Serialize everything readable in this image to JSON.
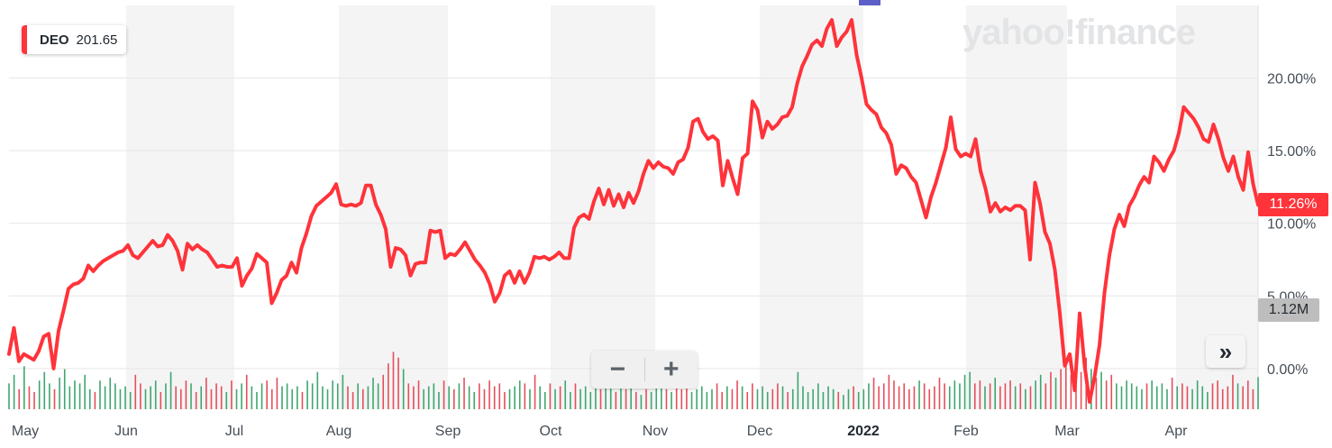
{
  "legend": {
    "symbol": "DEO",
    "value": "201.65",
    "color": "#ff333a"
  },
  "watermark": "yahoo!finance",
  "price_label": "11.26%",
  "volume_label": "1.12M",
  "controls": {
    "zoom_out": "−",
    "zoom_in": "+",
    "expand": "»"
  },
  "colors": {
    "line": "#ff333a",
    "vol_up": "#3fa66f",
    "vol_down": "#e54f5a",
    "band": "#f4f4f5",
    "grid": "#e6e6e6"
  },
  "chart_data": {
    "type": "line",
    "title": "",
    "xlabel": "",
    "ylabel": "",
    "y_ticks": [
      "0.00%",
      "5.00%",
      "10.00%",
      "15.00%",
      "20.00%"
    ],
    "x_ticks": [
      "May",
      "Jun",
      "Jul",
      "Aug",
      "Sep",
      "Oct",
      "Nov",
      "Dec",
      "2022",
      "Feb",
      "Mar",
      "Apr"
    ],
    "ylim": [
      -2.8,
      25
    ],
    "grid": true,
    "legend_position": "top-left",
    "series": [
      {
        "name": "DEO",
        "values": [
          1.0,
          2.8,
          0.5,
          1.0,
          0.8,
          0.6,
          1.2,
          2.2,
          2.4,
          0.0,
          2.6,
          4.0,
          5.5,
          5.8,
          5.9,
          6.2,
          7.1,
          6.7,
          7.1,
          7.4,
          7.6,
          7.8,
          8.0,
          8.1,
          8.5,
          7.8,
          7.6,
          8.0,
          8.4,
          8.8,
          8.4,
          8.5,
          9.2,
          8.8,
          8.1,
          6.8,
          8.6,
          8.2,
          8.5,
          8.2,
          8.0,
          7.5,
          7.0,
          7.1,
          7.0,
          7.0,
          7.6,
          5.7,
          6.4,
          6.9,
          7.9,
          7.6,
          7.3,
          4.5,
          5.2,
          6.1,
          6.4,
          7.3,
          6.6,
          8.3,
          9.3,
          10.5,
          11.2,
          11.5,
          11.8,
          12.1,
          12.7,
          11.3,
          11.2,
          11.3,
          11.2,
          11.4,
          12.6,
          12.6,
          11.3,
          10.6,
          9.6,
          7.0,
          8.3,
          8.2,
          7.8,
          6.4,
          7.2,
          7.3,
          7.3,
          9.5,
          9.4,
          9.5,
          7.6,
          7.9,
          7.8,
          8.2,
          8.7,
          8.1,
          7.5,
          7.1,
          6.6,
          5.8,
          4.6,
          5.2,
          6.4,
          6.7,
          5.9,
          6.7,
          5.9,
          6.6,
          7.7,
          7.6,
          7.7,
          7.5,
          7.7,
          8.0,
          7.6,
          7.6,
          9.7,
          10.4,
          10.6,
          10.3,
          11.5,
          12.4,
          11.3,
          12.3,
          11.2,
          12.0,
          11.1,
          12.1,
          11.4,
          12.2,
          13.4,
          14.3,
          13.8,
          14.2,
          13.9,
          13.8,
          13.4,
          14.2,
          14.4,
          15.2,
          17.0,
          17.2,
          16.3,
          15.8,
          16.0,
          15.7,
          12.6,
          14.3,
          13.1,
          12.0,
          14.5,
          14.8,
          18.4,
          17.8,
          15.9,
          17.0,
          16.5,
          16.8,
          17.3,
          17.4,
          18.0,
          19.6,
          20.8,
          21.5,
          22.3,
          22.6,
          22.2,
          23.4,
          24.0,
          22.2,
          22.8,
          23.2,
          24.0,
          21.6,
          20.0,
          18.2,
          17.8,
          17.5,
          16.6,
          16.2,
          15.4,
          13.4,
          14.0,
          13.8,
          13.2,
          12.8,
          11.6,
          10.4,
          11.8,
          12.8,
          14.0,
          15.2,
          17.3,
          15.1,
          14.6,
          14.8,
          14.6,
          15.8,
          13.6,
          12.4,
          10.8,
          11.4,
          10.8,
          11.1,
          10.9,
          11.2,
          11.2,
          10.9,
          7.5,
          12.8,
          11.4,
          9.4,
          8.6,
          6.8,
          3.8,
          0.2,
          1.0,
          -1.5,
          3.8,
          0.2,
          -2.3,
          -0.6,
          1.6,
          5.2,
          7.8,
          9.6,
          10.6,
          9.8,
          11.2,
          11.8,
          12.6,
          13.2,
          12.8,
          14.6,
          14.2,
          13.6,
          14.4,
          15.0,
          16.2,
          18.0,
          17.6,
          17.2,
          16.6,
          15.8,
          15.6,
          16.8,
          15.8,
          14.5,
          13.6,
          14.6,
          13.2,
          12.3,
          14.9,
          12.7,
          11.26
        ]
      }
    ],
    "volume": {
      "label": "1.12M",
      "values": [
        0.9,
        1.2,
        0.7,
        1.5,
        0.8,
        0.6,
        1.0,
        1.3,
        0.9,
        0.7,
        1.1,
        1.4,
        0.8,
        1.0,
        0.9,
        1.2,
        0.7,
        0.6,
        1.0,
        0.8,
        1.1,
        0.9,
        0.7,
        0.8,
        0.6,
        1.2,
        0.9,
        0.7,
        0.8,
        1.0,
        0.6,
        0.9,
        1.3,
        0.8,
        0.7,
        1.0,
        0.9,
        0.6,
        0.8,
        1.1,
        0.7,
        0.9,
        0.8,
        0.6,
        1.0,
        0.7,
        0.9,
        1.2,
        0.8,
        0.6,
        0.9,
        1.0,
        0.7,
        1.1,
        0.8,
        0.9,
        0.7,
        0.8,
        0.6,
        1.0,
        0.9,
        1.3,
        0.8,
        0.7,
        1.0,
        0.9,
        1.2,
        0.8,
        0.6,
        0.9,
        0.7,
        0.8,
        1.1,
        0.9,
        1.2,
        1.6,
        2.0,
        1.8,
        1.4,
        0.9,
        0.8,
        1.0,
        0.7,
        0.8,
        0.9,
        0.6,
        1.0,
        0.8,
        0.7,
        0.9,
        1.1,
        0.8,
        0.6,
        0.9,
        0.7,
        1.0,
        0.8,
        0.9,
        0.6,
        0.7,
        0.8,
        1.0,
        0.9,
        0.7,
        1.2,
        0.8,
        0.6,
        0.9,
        0.7,
        0.8,
        1.0,
        0.6,
        0.9,
        0.7,
        0.8,
        0.6,
        0.9,
        0.7,
        1.0,
        0.8,
        0.6,
        0.9,
        0.7,
        0.8,
        0.6,
        0.5,
        0.7,
        0.6,
        0.8,
        0.9,
        0.7,
        0.6,
        0.8,
        0.7,
        0.9,
        0.6,
        0.7,
        0.8,
        0.6,
        0.7,
        0.9,
        0.6,
        0.8,
        0.7,
        1.0,
        0.8,
        0.6,
        0.9,
        0.7,
        0.8,
        0.6,
        0.7,
        0.9,
        0.8,
        0.6,
        0.7,
        1.3,
        0.8,
        0.6,
        0.7,
        0.9,
        0.6,
        0.8,
        0.7,
        0.6,
        0.5,
        0.7,
        0.8,
        0.6,
        0.7,
        0.9,
        1.1,
        0.8,
        0.9,
        1.2,
        1.0,
        0.8,
        0.9,
        0.7,
        0.8,
        1.0,
        0.9,
        0.7,
        0.8,
        1.1,
        0.9,
        0.8,
        1.0,
        0.9,
        1.2,
        1.3,
        0.9,
        1.0,
        0.8,
        0.9,
        1.1,
        0.8,
        0.9,
        1.0,
        0.8,
        0.9,
        0.7,
        0.8,
        1.0,
        1.2,
        0.9,
        1.3,
        1.1,
        1.4,
        1.6,
        1.2,
        1.5,
        1.3,
        1.8,
        1.4,
        1.1,
        1.3,
        1.0,
        1.2,
        0.9,
        0.8,
        1.0,
        0.9,
        0.8,
        0.7,
        0.9,
        1.0,
        0.8,
        0.9,
        0.7,
        1.1,
        0.8,
        0.9,
        0.8,
        0.7,
        1.0,
        0.8,
        0.6,
        0.9,
        1.0,
        0.7,
        0.8,
        1.2,
        0.9,
        0.8,
        1.0,
        0.7,
        1.12
      ]
    }
  }
}
